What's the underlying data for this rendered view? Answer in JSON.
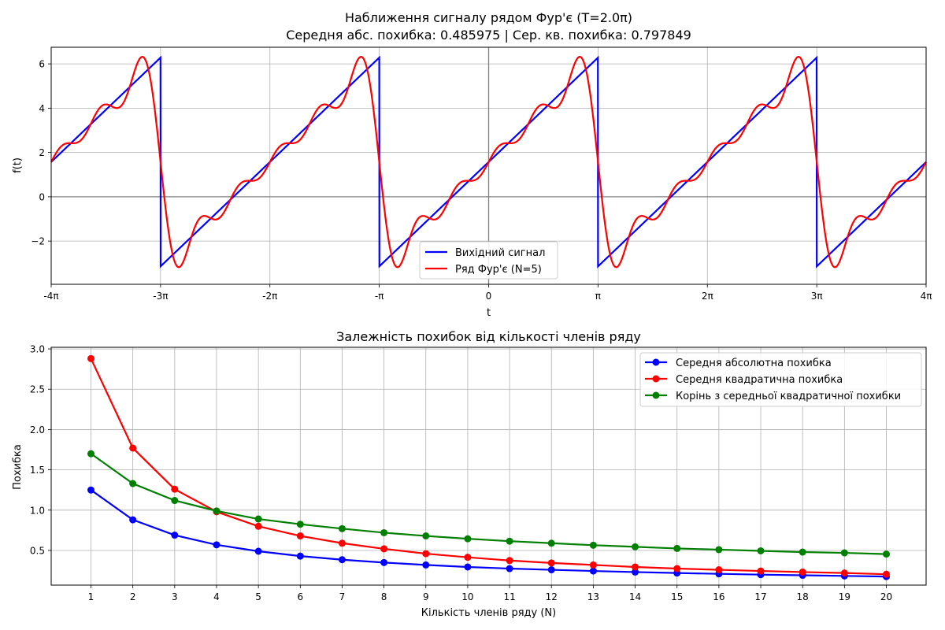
{
  "chart_data": [
    {
      "type": "line",
      "title_line1": "Наближення сигналу рядом Фур'є (T=2.0π)",
      "title_line2": "Середня абс. похибка: 0.485975 | Сер. кв. похибка: 0.797849",
      "xlabel": "t",
      "ylabel": "f(t)",
      "period": "2π",
      "fourier_terms": 5,
      "xlim": [
        -12.566,
        12.566
      ],
      "ylim": [
        -3.95,
        6.75
      ],
      "x_tick_values": [
        -12.566,
        -9.425,
        -6.283,
        -3.142,
        0,
        3.142,
        6.283,
        9.425,
        12.566
      ],
      "x_tick_labels": [
        "-4π",
        "-3π",
        "-2π",
        "-π",
        "0",
        "π",
        "2π",
        "3π",
        "4π"
      ],
      "y_ticks": [
        -2,
        0,
        2,
        4,
        6
      ],
      "grid": true,
      "legend_position": "lower-center",
      "series": [
        {
          "name": "Вихідний сигнал",
          "color": "#0000ff",
          "function": "sawtooth",
          "range": [
            -3.1416,
            6.2832
          ]
        },
        {
          "name": "Ряд Фур'є (N=5)",
          "color": "#ff0000",
          "function": "fourier_partial_sum",
          "terms": 5
        }
      ]
    },
    {
      "type": "line",
      "title": "Залежність похибок від кількості членів ряду",
      "xlabel": "Кількість членів ряду (N)",
      "ylabel": "Похибка",
      "x": [
        1,
        2,
        3,
        4,
        5,
        6,
        7,
        8,
        9,
        10,
        11,
        12,
        13,
        14,
        15,
        16,
        17,
        18,
        19,
        20
      ],
      "xlim": [
        0.05,
        20.95
      ],
      "ylim": [
        0.07,
        3.02
      ],
      "y_ticks": [
        0.5,
        1.0,
        1.5,
        2.0,
        2.5,
        3.0
      ],
      "y_tick_labels": [
        "0.5",
        "1.0",
        "1.5",
        "2.0",
        "2.5",
        "3.0"
      ],
      "grid": true,
      "legend_position": "upper-right",
      "series": [
        {
          "name": "Середня абсолютна похибка",
          "color": "#0000ff",
          "values": [
            1.25,
            0.88,
            0.69,
            0.57,
            0.49,
            0.43,
            0.385,
            0.35,
            0.32,
            0.295,
            0.275,
            0.26,
            0.245,
            0.232,
            0.22,
            0.21,
            0.2,
            0.192,
            0.184,
            0.176
          ]
        },
        {
          "name": "Середня квадратична похибка",
          "color": "#ff0000",
          "values": [
            2.88,
            1.77,
            1.26,
            0.98,
            0.8,
            0.68,
            0.59,
            0.52,
            0.46,
            0.415,
            0.375,
            0.345,
            0.32,
            0.295,
            0.275,
            0.26,
            0.245,
            0.232,
            0.22,
            0.205
          ]
        },
        {
          "name": "Корінь з середньої квадратичної похибки",
          "color": "#008000",
          "values": [
            1.7,
            1.33,
            1.12,
            0.99,
            0.89,
            0.825,
            0.77,
            0.72,
            0.68,
            0.645,
            0.615,
            0.59,
            0.565,
            0.545,
            0.525,
            0.51,
            0.495,
            0.48,
            0.47,
            0.455
          ]
        }
      ]
    }
  ]
}
